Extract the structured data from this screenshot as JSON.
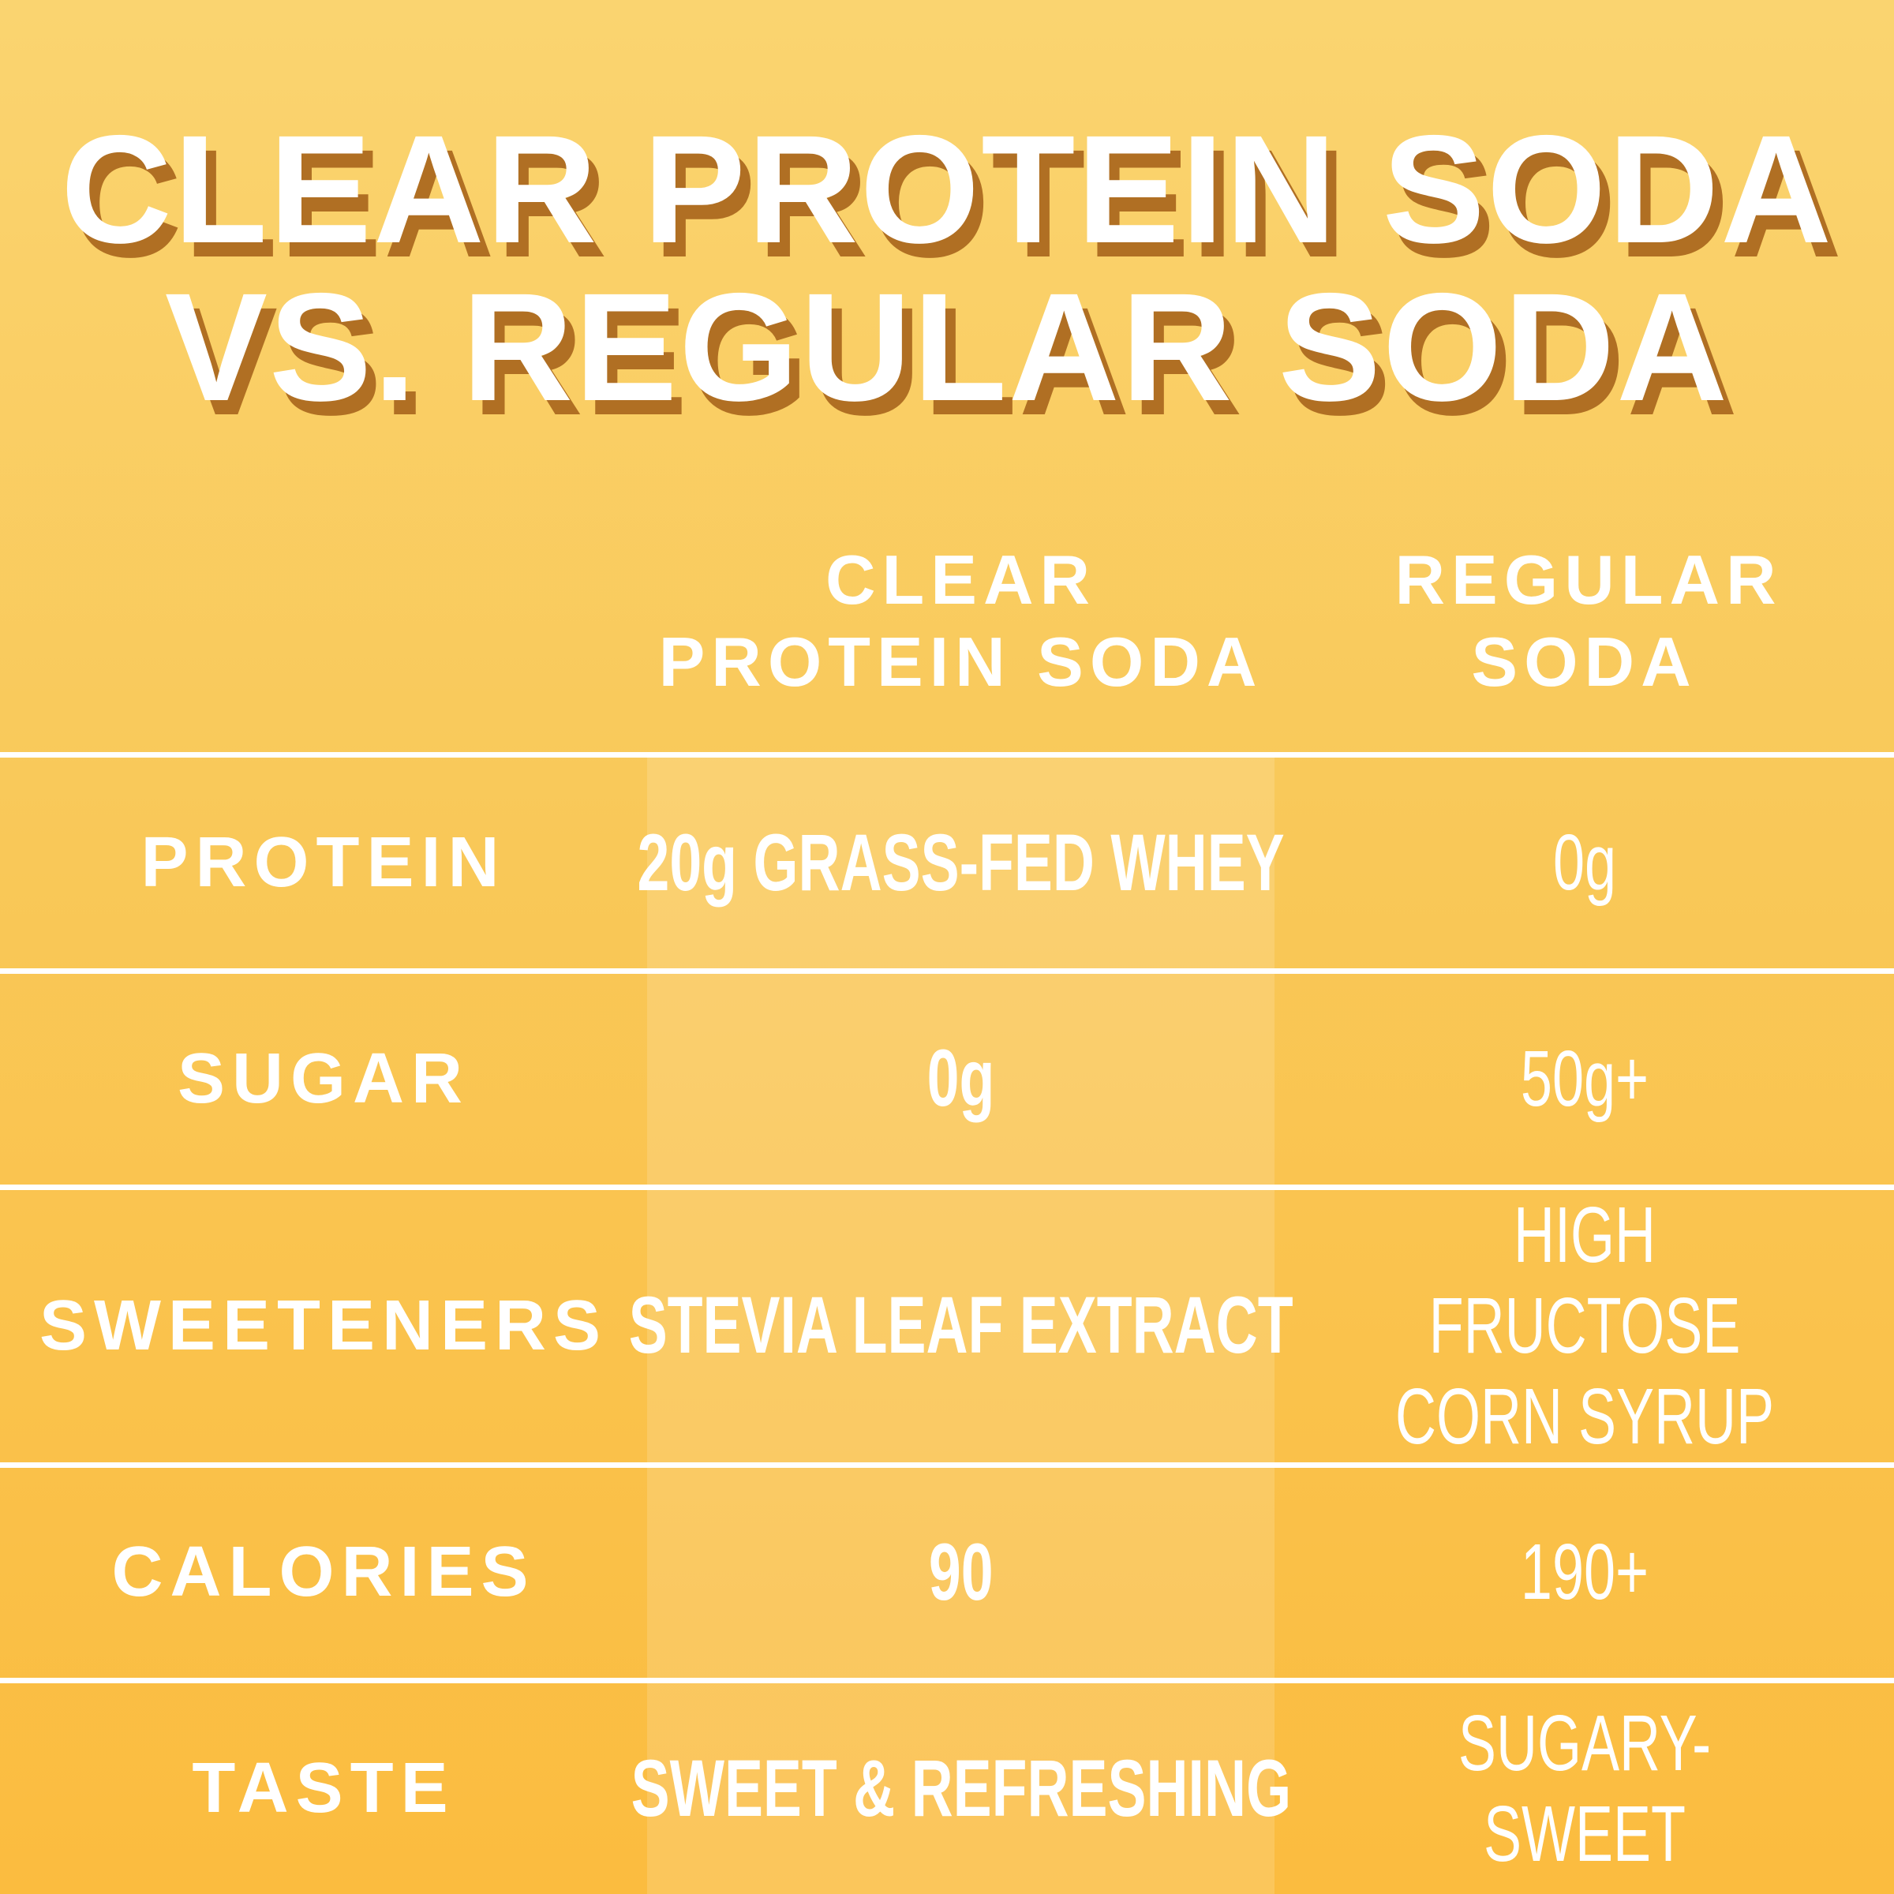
{
  "title": {
    "line1": "CLEAR PROTEIN SODA",
    "line2": "VS. REGULAR SODA"
  },
  "table": {
    "columns": {
      "clear": "CLEAR PROTEIN SODA",
      "regular": "REGULAR SODA"
    },
    "rows": [
      {
        "label": "PROTEIN",
        "clear": "20g GRASS-FED WHEY",
        "regular": "0g"
      },
      {
        "label": "SUGAR",
        "clear": "0g",
        "regular": "50g+"
      },
      {
        "label": "SWEETENERS",
        "clear": "STEVIA LEAF EXTRACT",
        "regular": "HIGH FRUCTOSE CORN SYRUP"
      },
      {
        "label": "CALORIES",
        "clear": "90",
        "regular": "190+"
      },
      {
        "label": "TASTE",
        "clear": "SWEET & REFRESHING",
        "regular": "SUGARY-SWEET"
      }
    ]
  },
  "colors": {
    "background_top": "#FAD470",
    "background_bottom": "#FBBC3F",
    "title_text": "#FFFFFF",
    "title_shadow": "#B06F23",
    "table_text": "#FFFFFF",
    "separator_line": "#FFFFFF",
    "highlight_column": "rgba(255,255,255,0.15)"
  },
  "chart_data": {
    "type": "table",
    "title": "CLEAR PROTEIN SODA VS. REGULAR SODA",
    "columns": [
      "",
      "CLEAR PROTEIN SODA",
      "REGULAR SODA"
    ],
    "rows": [
      [
        "PROTEIN",
        "20g GRASS-FED WHEY",
        "0g"
      ],
      [
        "SUGAR",
        "0g",
        "50g+"
      ],
      [
        "SWEETENERS",
        "STEVIA LEAF EXTRACT",
        "HIGH FRUCTOSE CORN SYRUP"
      ],
      [
        "CALORIES",
        "90",
        "190+"
      ],
      [
        "TASTE",
        "SWEET & REFRESHING",
        "SUGARY-SWEET"
      ]
    ],
    "layout_hints": {
      "highlighted_column": "CLEAR PROTEIN SODA",
      "row_separators": true,
      "column_separators": false
    }
  }
}
